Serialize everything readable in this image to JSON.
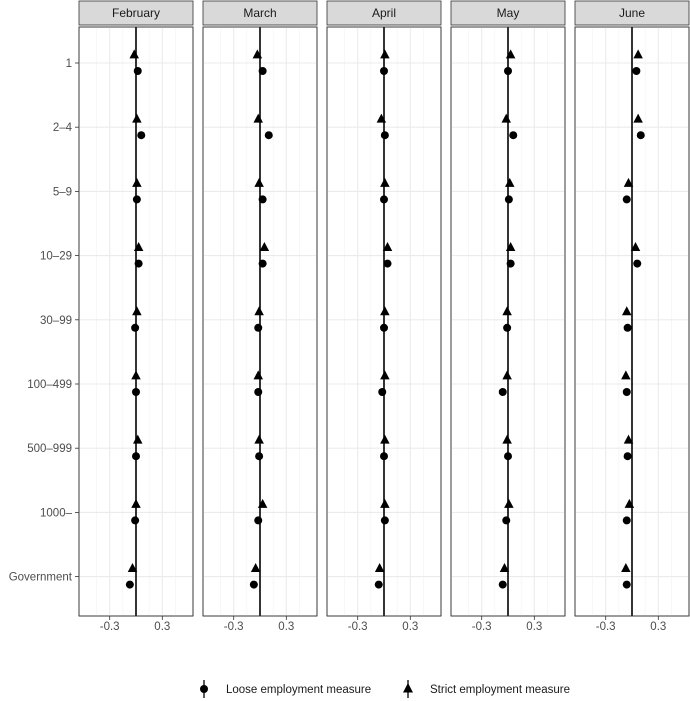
{
  "chart_data": {
    "type": "scatter",
    "facets": [
      "February",
      "March",
      "April",
      "May",
      "June"
    ],
    "categories": [
      "1",
      "2–4",
      "5–9",
      "10–29",
      "30–99",
      "100–499",
      "500–999",
      "1000–",
      "Government"
    ],
    "xlim": [
      -0.65,
      0.65
    ],
    "xticks": [
      -0.3,
      0.3
    ],
    "xtick_labels": [
      "-0.3",
      "0.3"
    ],
    "reference_line_x": 0,
    "grid": true,
    "legend_position": "bottom",
    "series": [
      {
        "name": "Loose employment measure",
        "marker": "circle",
        "values": [
          [
            0.02,
            0.06,
            0.01,
            0.03,
            -0.01,
            0.0,
            0.0,
            -0.01,
            -0.07
          ],
          [
            0.03,
            0.1,
            0.03,
            0.03,
            -0.02,
            -0.02,
            -0.01,
            -0.02,
            -0.07
          ],
          [
            0.0,
            0.01,
            0.0,
            0.04,
            0.0,
            -0.02,
            0.0,
            0.01,
            -0.06
          ],
          [
            0.0,
            0.06,
            0.01,
            0.03,
            -0.01,
            -0.06,
            0.0,
            -0.02,
            -0.06
          ],
          [
            0.05,
            0.1,
            -0.06,
            0.06,
            -0.05,
            -0.06,
            -0.05,
            -0.06,
            -0.06
          ]
        ]
      },
      {
        "name": "Strict employment measure",
        "marker": "triangle",
        "values": [
          [
            -0.02,
            0.01,
            0.01,
            0.03,
            0.01,
            0.0,
            0.02,
            0.0,
            -0.04
          ],
          [
            -0.03,
            -0.02,
            -0.01,
            0.05,
            -0.01,
            -0.02,
            -0.01,
            0.03,
            -0.05
          ],
          [
            0.01,
            -0.03,
            0.01,
            0.04,
            0.01,
            0.01,
            0.01,
            0.01,
            -0.05
          ],
          [
            0.03,
            -0.02,
            0.02,
            0.03,
            -0.01,
            -0.01,
            -0.01,
            0.01,
            -0.04
          ],
          [
            0.07,
            0.07,
            -0.04,
            0.04,
            -0.06,
            -0.07,
            -0.04,
            -0.03,
            -0.07
          ]
        ]
      }
    ]
  }
}
